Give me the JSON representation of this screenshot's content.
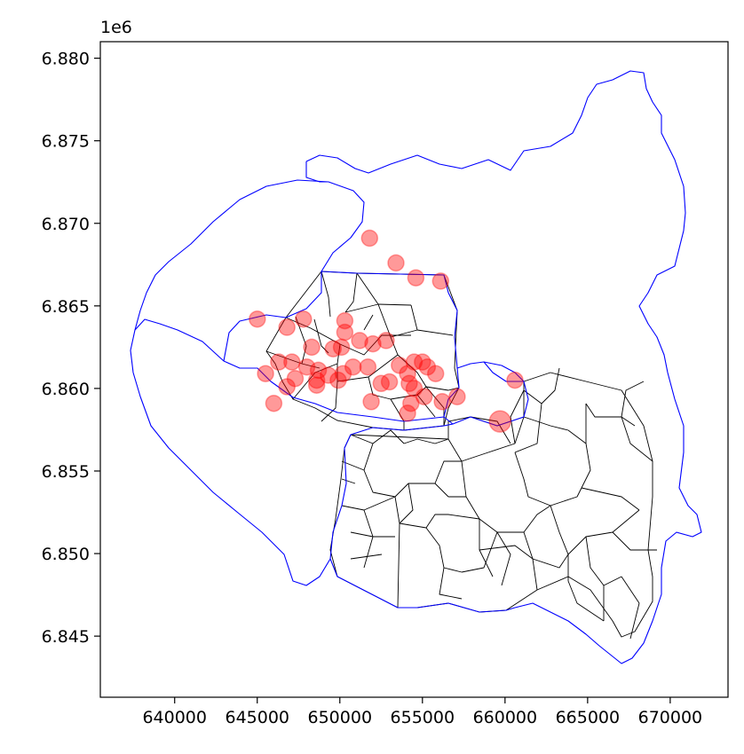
{
  "chart_data": {
    "type": "scatter",
    "title": "",
    "xlabel": "",
    "ylabel": "",
    "xlim": [
      635500,
      673500
    ],
    "ylim": [
      6841300,
      6881000
    ],
    "x_ticks": [
      640000,
      645000,
      650000,
      655000,
      660000,
      665000,
      670000
    ],
    "x_tick_labels": [
      "640000",
      "645000",
      "650000",
      "655000",
      "660000",
      "665000",
      "670000"
    ],
    "y_ticks": [
      6845000,
      6850000,
      6855000,
      6860000,
      6865000,
      6870000,
      6875000,
      6880000
    ],
    "y_tick_labels": [
      "6.845",
      "6.850",
      "6.855",
      "6.860",
      "6.865",
      "6.870",
      "6.875",
      "6.880"
    ],
    "y_offset_label": "1e6",
    "grid": false,
    "colors": {
      "points": "#ff0000",
      "outline": "#0000ff",
      "districts": "#000000"
    },
    "points": [
      {
        "x": 651800,
        "y": 6869100
      },
      {
        "x": 653400,
        "y": 6867600
      },
      {
        "x": 654600,
        "y": 6866700
      },
      {
        "x": 656100,
        "y": 6866500
      },
      {
        "x": 645000,
        "y": 6864200
      },
      {
        "x": 646800,
        "y": 6863700
      },
      {
        "x": 647800,
        "y": 6864200
      },
      {
        "x": 650300,
        "y": 6864100
      },
      {
        "x": 650300,
        "y": 6863400
      },
      {
        "x": 651200,
        "y": 6862900
      },
      {
        "x": 652000,
        "y": 6862700
      },
      {
        "x": 652800,
        "y": 6862900
      },
      {
        "x": 648300,
        "y": 6862500
      },
      {
        "x": 649600,
        "y": 6862400
      },
      {
        "x": 650100,
        "y": 6862500
      },
      {
        "x": 646300,
        "y": 6861600
      },
      {
        "x": 647100,
        "y": 6861600
      },
      {
        "x": 648000,
        "y": 6861300
      },
      {
        "x": 648700,
        "y": 6861100
      },
      {
        "x": 649300,
        "y": 6860800
      },
      {
        "x": 650200,
        "y": 6860900
      },
      {
        "x": 650800,
        "y": 6861300
      },
      {
        "x": 651700,
        "y": 6861300
      },
      {
        "x": 645500,
        "y": 6860900
      },
      {
        "x": 646800,
        "y": 6860100
      },
      {
        "x": 647300,
        "y": 6860600
      },
      {
        "x": 648600,
        "y": 6860500
      },
      {
        "x": 648600,
        "y": 6860200
      },
      {
        "x": 649900,
        "y": 6860500
      },
      {
        "x": 652500,
        "y": 6860300
      },
      {
        "x": 653000,
        "y": 6860400
      },
      {
        "x": 653600,
        "y": 6861400
      },
      {
        "x": 654100,
        "y": 6860900
      },
      {
        "x": 654500,
        "y": 6861600
      },
      {
        "x": 655000,
        "y": 6861600
      },
      {
        "x": 655300,
        "y": 6861300
      },
      {
        "x": 655800,
        "y": 6860900
      },
      {
        "x": 654200,
        "y": 6860300
      },
      {
        "x": 654500,
        "y": 6860000
      },
      {
        "x": 654300,
        "y": 6859100
      },
      {
        "x": 654100,
        "y": 6858500
      },
      {
        "x": 655100,
        "y": 6859500
      },
      {
        "x": 656200,
        "y": 6859200
      },
      {
        "x": 651900,
        "y": 6859200
      },
      {
        "x": 646000,
        "y": 6859100
      },
      {
        "x": 657100,
        "y": 6859500
      },
      {
        "x": 660600,
        "y": 6860500
      },
      {
        "x": 659700,
        "y": 6858000,
        "size": "large"
      }
    ]
  }
}
